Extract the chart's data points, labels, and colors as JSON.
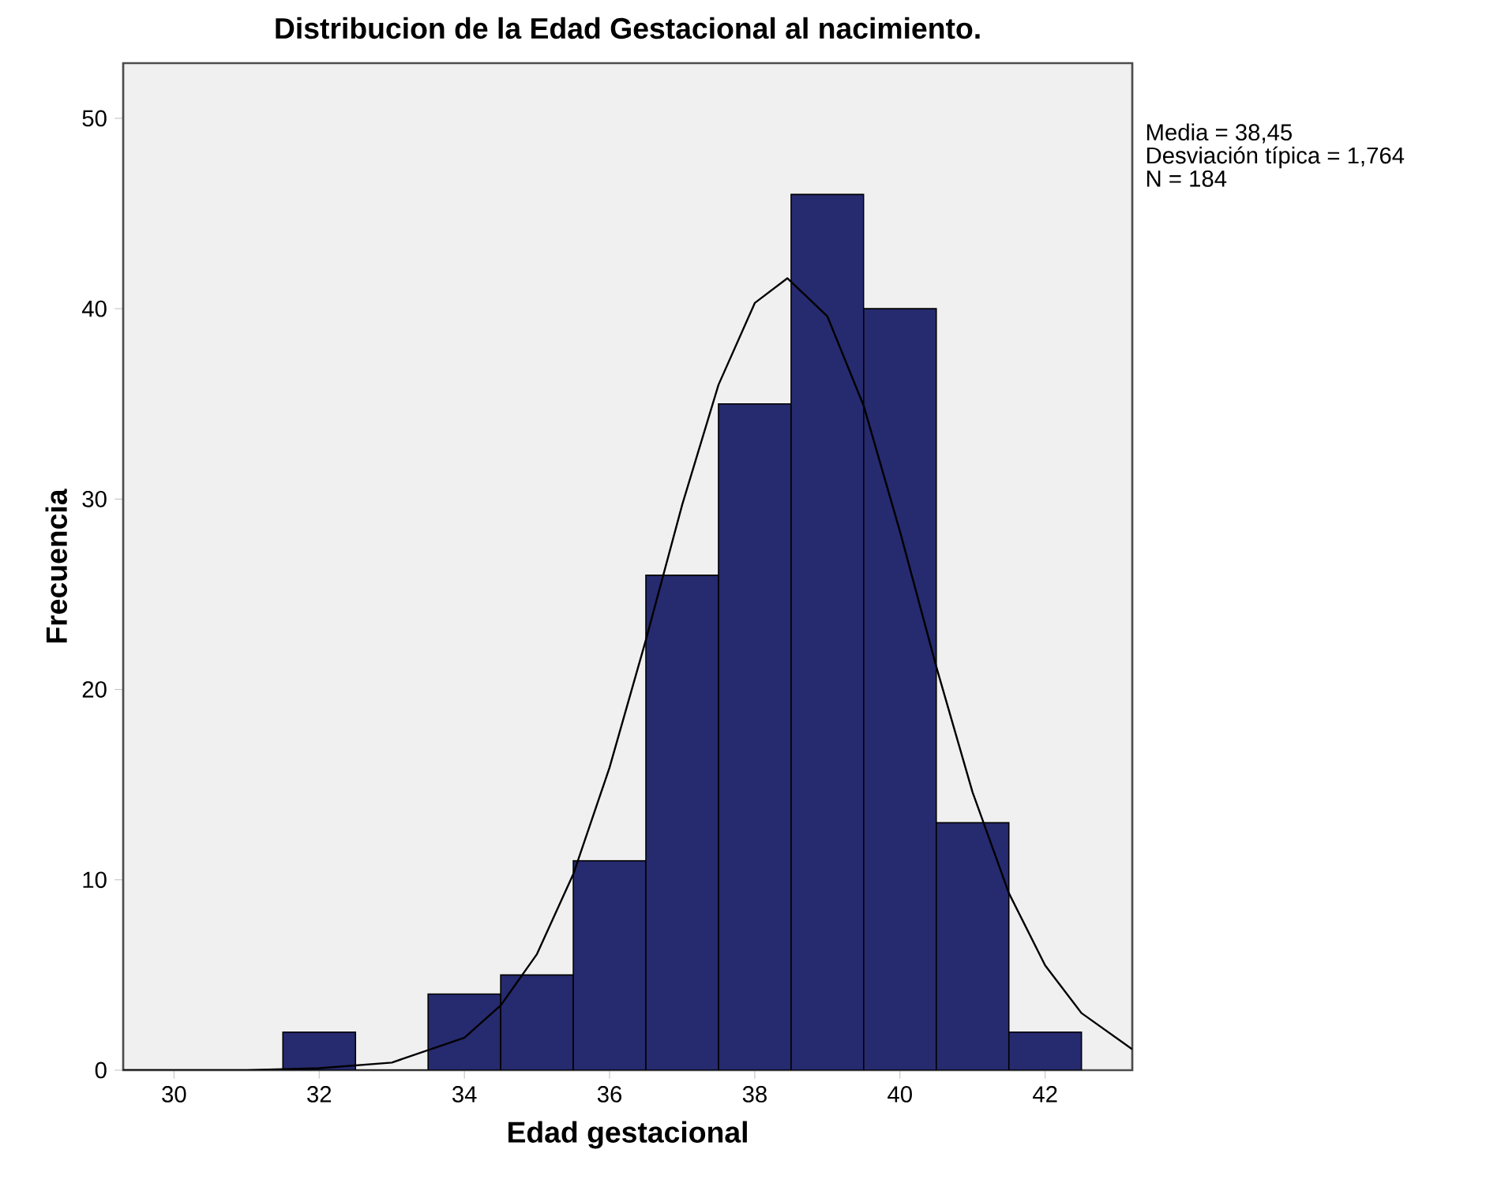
{
  "chart_data": {
    "type": "histogram",
    "title": "Distribucion de la Edad Gestacional al nacimiento.",
    "xlabel": "Edad gestacional",
    "ylabel": "Frecuencia",
    "bins": [
      31.5,
      32.5,
      33.5,
      34.5,
      35.5,
      36.5,
      37.5,
      38.5,
      39.5,
      40.5,
      41.5,
      42.5
    ],
    "values": [
      2,
      0,
      4,
      5,
      11,
      26,
      35,
      46,
      40,
      13,
      2
    ],
    "color": "#262a6e",
    "series": [
      {
        "type": "line",
        "color": "#000000",
        "x": [
          29.3,
          31,
          32,
          33,
          34,
          34.5,
          35,
          35.5,
          36,
          36.5,
          37,
          37.5,
          38,
          38.45,
          39,
          39.5,
          40,
          40.5,
          41,
          41.5,
          42,
          42.5,
          43.2
        ],
        "values": [
          0,
          0,
          0.1,
          0.4,
          1.7,
          3.4,
          6.1,
          10.3,
          15.9,
          22.6,
          29.7,
          36,
          40.3,
          41.6,
          39.6,
          34.9,
          28.3,
          21.2,
          14.6,
          9.3,
          5.5,
          3,
          1.1
        ]
      }
    ],
    "xlim": [
      29.3,
      43.2
    ],
    "ylim": [
      0,
      52.9
    ],
    "xticks": [
      30,
      32,
      34,
      36,
      38,
      40,
      42
    ],
    "yticks": [
      0,
      10,
      20,
      30,
      40,
      50
    ],
    "grid": false,
    "annotations": [
      "Media = 38,45",
      "Desviación típica = 1,764",
      "N = 184"
    ]
  }
}
